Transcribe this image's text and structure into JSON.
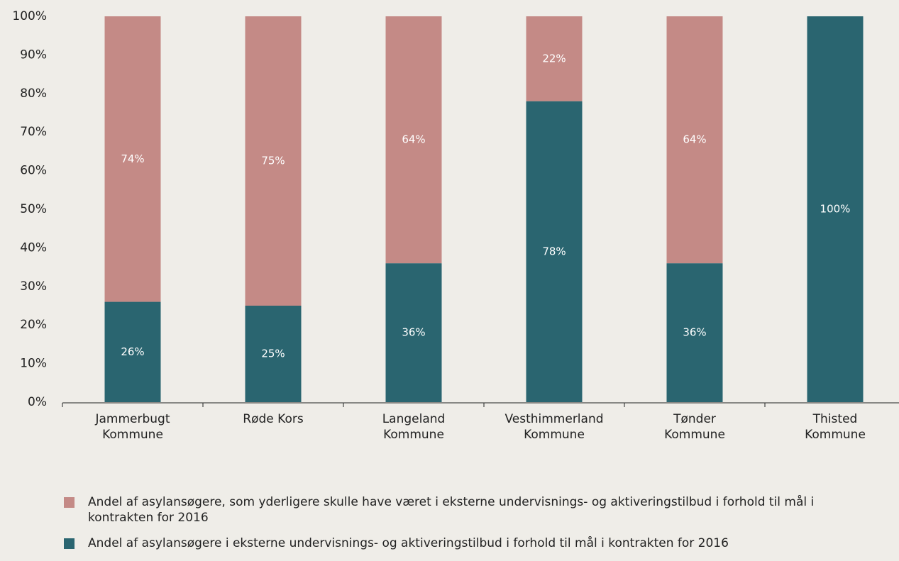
{
  "chart_data": {
    "type": "stacked_bar",
    "categories": [
      "Jammerbugt\nKommune",
      "Røde Kors",
      "Langeland\nKommune",
      "Vesthimmerland\nKommune",
      "Tønder\nKommune",
      "Thisted\nKommune"
    ],
    "series": [
      {
        "name": "Andel af asylansøgere i eksterne undervisnings- og aktiveringstilbud i forhold til mål i kontrakten for 2016",
        "color": "#2a6570",
        "values": [
          26,
          25,
          36,
          78,
          36,
          100
        ]
      },
      {
        "name": "Andel af asylansøgere, som yderligere skulle have været i eksterne undervisnings- og aktiveringstilbud i forhold til mål i kontrakten for 2016",
        "color": "#c48a86",
        "values": [
          74,
          75,
          64,
          22,
          64,
          0
        ]
      }
    ],
    "ylim": [
      0,
      100
    ],
    "yticks": [
      {
        "value": 0,
        "label": "0%"
      },
      {
        "value": 10,
        "label": "10%"
      },
      {
        "value": 20,
        "label": "20%"
      },
      {
        "value": 30,
        "label": "30%"
      },
      {
        "value": 40,
        "label": "40%"
      },
      {
        "value": 50,
        "label": "50%"
      },
      {
        "value": 60,
        "label": "60%"
      },
      {
        "value": 70,
        "label": "70%"
      },
      {
        "value": 80,
        "label": "80%"
      },
      {
        "value": 90,
        "label": "90%"
      },
      {
        "value": 100,
        "label": "100%"
      }
    ],
    "value_labels": [
      [
        "26%",
        "25%",
        "36%",
        "78%",
        "36%",
        "100%"
      ],
      [
        "74%",
        "75%",
        "64%",
        "22%",
        "64%",
        null
      ]
    ],
    "grid": false,
    "legend": "bottom-left"
  }
}
